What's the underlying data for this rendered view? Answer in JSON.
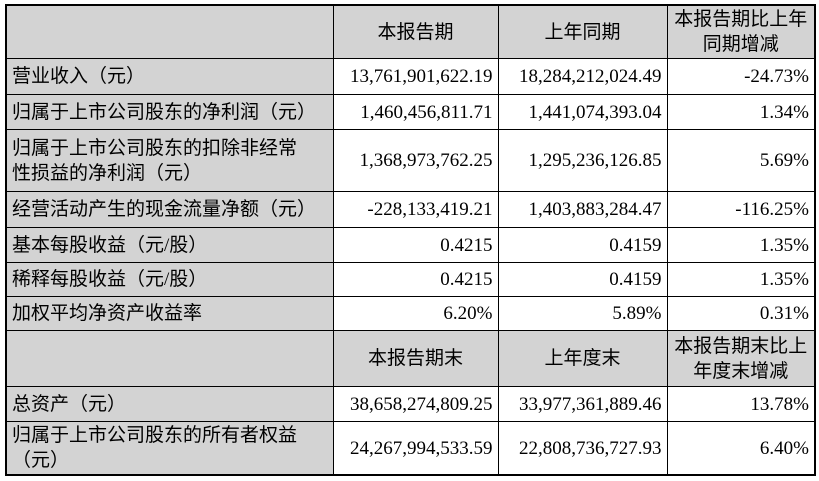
{
  "styles": {
    "header_bg": "#d3d3d3",
    "cell_bg": "#ffffff",
    "border_color": "#000000",
    "text_color": "#000000"
  },
  "table": {
    "section1": {
      "corner": "",
      "headers": [
        "本报告期",
        "上年同期",
        "本报告期比上年\n同期增减"
      ],
      "rows": [
        {
          "label": "营业收入（元）",
          "current": "13,761,901,622.19",
          "prior": "18,284,212,024.49",
          "change": "-24.73%"
        },
        {
          "label": "归属于上市公司股东的净利润（元）",
          "current": "1,460,456,811.71",
          "prior": "1,441,074,393.04",
          "change": "1.34%"
        },
        {
          "label": "归属于上市公司股东的扣除非经常\n性损益的净利润（元）",
          "current": "1,368,973,762.25",
          "prior": "1,295,236,126.85",
          "change": "5.69%"
        },
        {
          "label": "经营活动产生的现金流量净额（元）",
          "current": "-228,133,419.21",
          "prior": "1,403,883,284.47",
          "change": "-116.25%"
        },
        {
          "label": "基本每股收益（元/股）",
          "current": "0.4215",
          "prior": "0.4159",
          "change": "1.35%"
        },
        {
          "label": "稀释每股收益（元/股）",
          "current": "0.4215",
          "prior": "0.4159",
          "change": "1.35%"
        },
        {
          "label": "加权平均净资产收益率",
          "current": "6.20%",
          "prior": "5.89%",
          "change": "0.31%"
        }
      ]
    },
    "section2": {
      "corner": "",
      "headers": [
        "本报告期末",
        "上年度末",
        "本报告期末比上\n年度末增减"
      ],
      "rows": [
        {
          "label": "总资产（元）",
          "current": "38,658,274,809.25",
          "prior": "33,977,361,889.46",
          "change": "13.78%"
        },
        {
          "label": "归属于上市公司股东的所有者权益\n（元）",
          "current": "24,267,994,533.59",
          "prior": "22,808,736,727.93",
          "change": "6.40%"
        }
      ]
    }
  }
}
